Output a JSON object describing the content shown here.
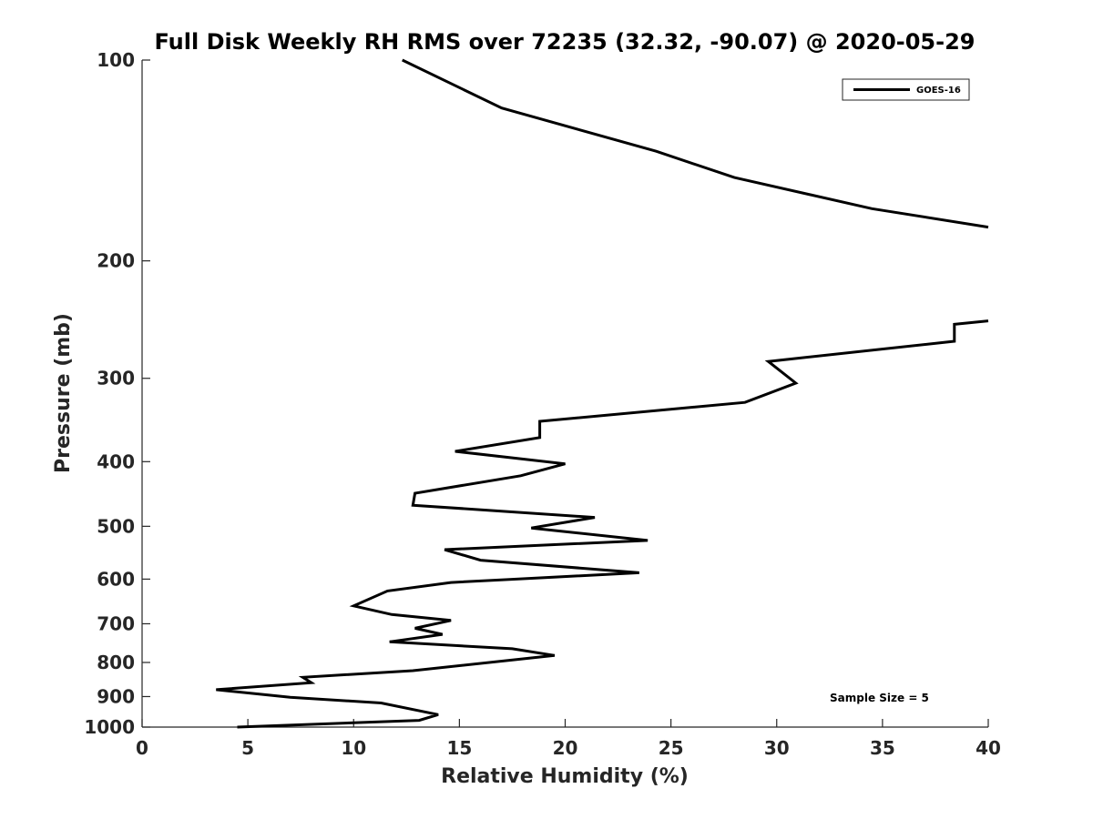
{
  "chart_data": {
    "type": "line",
    "title": "Full Disk Weekly RH RMS over 72235 (32.32, -90.07) @ 2020-05-29",
    "xlabel": "Relative Humidity (%)",
    "ylabel": "Pressure (mb)",
    "xlim": [
      0,
      40
    ],
    "ylim": [
      100,
      1000
    ],
    "yscale": "log",
    "yreversed": true,
    "grid": false,
    "xticks": [
      0,
      5,
      10,
      15,
      20,
      25,
      30,
      35,
      40
    ],
    "xtick_labels": [
      "0",
      "5",
      "10",
      "15",
      "20",
      "25",
      "30",
      "35",
      "40"
    ],
    "yticks": [
      100,
      200,
      300,
      400,
      500,
      600,
      700,
      800,
      900,
      1000
    ],
    "ytick_labels": [
      "100",
      "200",
      "300",
      "400",
      "500",
      "600",
      "700",
      "800",
      "900",
      "1000"
    ],
    "legend": {
      "position": "top-right",
      "entries": [
        "GOES-16"
      ]
    },
    "annotation": "Sample Size = 5",
    "series": [
      {
        "name": "GOES-16",
        "color": "#000000",
        "segments": [
          {
            "x": [
              12.3,
              17.0,
              24.3,
              28.0,
              34.5,
              40.0
            ],
            "y": [
              100,
              118,
              137,
              150,
              167,
              178
            ]
          },
          {
            "x": [
              40.0,
              38.4,
              38.4,
              29.6,
              30.9,
              28.5,
              18.8,
              18.8,
              14.8,
              20.0,
              17.9,
              12.9,
              12.8,
              21.4,
              18.4,
              23.9,
              14.3,
              16.0,
              23.5,
              14.6,
              11.6,
              10.0,
              11.8,
              14.6,
              12.9,
              14.2,
              11.7,
              17.5,
              19.5,
              12.8,
              7.6,
              8.0,
              3.5,
              7.0,
              11.3,
              14.0,
              13.1,
              4.5
            ],
            "y": [
              246,
              249,
              264,
              283,
              305,
              326,
              348,
              368,
              386,
              403,
              420,
              446,
              465,
              485,
              503,
              525,
              542,
              562,
              587,
              607,
              625,
              658,
              678,
              692,
              711,
              726,
              745,
              763,
              781,
              823,
              842,
              858,
              879,
              902,
              920,
              958,
              977,
              1000
            ]
          }
        ]
      }
    ]
  }
}
